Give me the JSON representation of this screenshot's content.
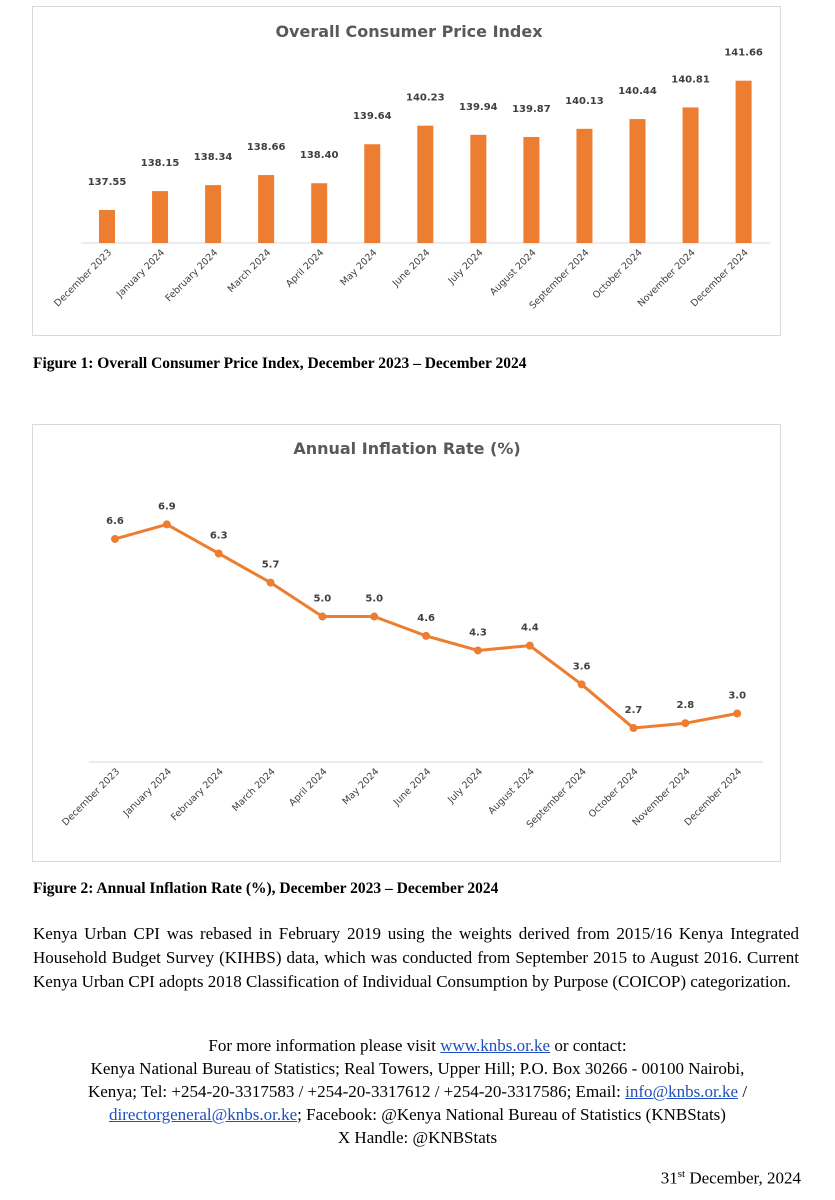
{
  "charts": {
    "cpi_title": "Overall Consumer Price Index",
    "inflation_title": "Annual Inflation Rate (%)"
  },
  "chart_data": [
    {
      "type": "bar",
      "title": "Overall Consumer Price Index",
      "categories": [
        "December 2023",
        "January 2024",
        "February 2024",
        "March 2024",
        "April 2024",
        "May 2024",
        "June 2024",
        "July 2024",
        "August 2024",
        "September 2024",
        "October 2024",
        "November 2024",
        "December 2024"
      ],
      "values": [
        137.55,
        138.15,
        138.34,
        138.66,
        138.4,
        139.64,
        140.23,
        139.94,
        139.87,
        140.13,
        140.44,
        140.81,
        141.66
      ],
      "value_labels": [
        "137.55",
        "138.15",
        "138.34",
        "138.66",
        "138.40",
        "139.64",
        "140.23",
        "139.94",
        "139.87",
        "140.13",
        "140.44",
        "140.81",
        "141.66"
      ],
      "ylim": [
        136.5,
        142.0
      ],
      "color": "#ed7d31",
      "grid": false,
      "legend": "none"
    },
    {
      "type": "line",
      "title": "Annual Inflation Rate (%)",
      "categories": [
        "December 2023",
        "January 2024",
        "February 2024",
        "March 2024",
        "April 2024",
        "May 2024",
        "June 2024",
        "July 2024",
        "August 2024",
        "September 2024",
        "October 2024",
        "November 2024",
        "December 2024"
      ],
      "values": [
        6.6,
        6.9,
        6.3,
        5.7,
        5.0,
        5.0,
        4.6,
        4.3,
        4.4,
        3.6,
        2.7,
        2.8,
        3.0
      ],
      "value_labels": [
        "6.6",
        "6.9",
        "6.3",
        "5.7",
        "5.0",
        "5.0",
        "4.6",
        "4.3",
        "4.4",
        "3.6",
        "2.7",
        "2.8",
        "3.0"
      ],
      "ylim": [
        2.0,
        7.3
      ],
      "color": "#ed7d31",
      "grid": false,
      "legend": "none"
    }
  ],
  "captions": {
    "figure1": "Figure 1: Overall Consumer Price Index, December 2023 – December 2024",
    "figure2": "Figure 2: Annual Inflation Rate (%), December 2023 – December 2024"
  },
  "body": {
    "paragraph": "Kenya Urban CPI was rebased in February 2019 using the weights derived from 2015/16 Kenya Integrated Household Budget Survey (KIHBS) data, which was conducted from September 2015 to August 2016.  Current Kenya Urban CPI adopts 2018 Classification of Individual Consumption by Purpose (COICOP) categorization."
  },
  "contact": {
    "visit_prefix": "For more information please visit ",
    "website": "www.knbs.or.ke",
    "visit_suffix": " or contact:",
    "address": "Kenya National Bureau of Statistics; Real Towers, Upper Hill; P.O. Box 30266 - 00100 Nairobi,",
    "phones_prefix": "Kenya; Tel: +254-20-3317583 / +254-20-3317612 / +254-20-3317586; Email: ",
    "email1": "info@knbs.or.ke",
    "email_sep": " /",
    "email2": "directorgeneral@knbs.or.ke",
    "facebook": "; Facebook: @Kenya National Bureau of Statistics (KNBStats)",
    "x_handle": "X Handle: @KNBStats"
  },
  "date": {
    "day": "31",
    "suffix": "st",
    "rest": " December, 2024"
  }
}
